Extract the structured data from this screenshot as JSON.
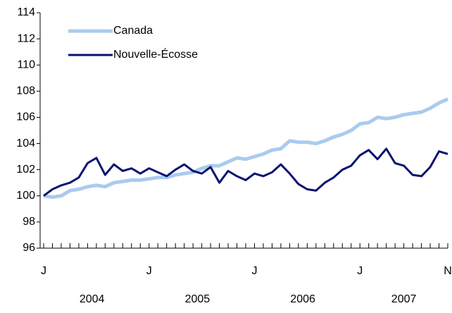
{
  "chart_data": {
    "type": "line",
    "categories": [
      "J",
      null,
      null,
      null,
      null,
      null,
      null,
      null,
      null,
      null,
      null,
      null,
      "J",
      null,
      null,
      null,
      null,
      null,
      null,
      null,
      null,
      null,
      null,
      null,
      "J",
      null,
      null,
      null,
      null,
      null,
      null,
      null,
      null,
      null,
      null,
      null,
      "J",
      null,
      null,
      null,
      null,
      null,
      null,
      null,
      null,
      null,
      "N"
    ],
    "year_labels": [
      "2004",
      "2005",
      "2006",
      "2007"
    ],
    "series": [
      {
        "name": "Canada",
        "color": "#a9cbee",
        "values": [
          100.0,
          99.9,
          100.0,
          100.4,
          100.5,
          100.7,
          100.8,
          100.7,
          101.0,
          101.1,
          101.2,
          101.2,
          101.3,
          101.4,
          101.4,
          101.6,
          101.7,
          101.8,
          102.1,
          102.3,
          102.3,
          102.6,
          102.9,
          102.8,
          103.0,
          103.2,
          103.5,
          103.6,
          104.2,
          104.1,
          104.1,
          104.0,
          104.2,
          104.5,
          104.7,
          105.0,
          105.5,
          105.6,
          106.0,
          105.9,
          106.0,
          106.2,
          106.3,
          106.4,
          106.7,
          107.1,
          107.4
        ]
      },
      {
        "name": "Nouvelle-Écosse",
        "color": "#0b1470",
        "values": [
          100.0,
          100.5,
          100.8,
          101.0,
          101.4,
          102.5,
          102.9,
          101.6,
          102.4,
          101.9,
          102.1,
          101.7,
          102.1,
          101.8,
          101.5,
          102.0,
          102.4,
          101.9,
          101.7,
          102.2,
          101.0,
          101.9,
          101.5,
          101.2,
          101.7,
          101.5,
          101.8,
          102.4,
          101.7,
          100.9,
          100.5,
          100.4,
          101.0,
          101.4,
          102.0,
          102.3,
          103.1,
          103.5,
          102.8,
          103.6,
          102.5,
          102.3,
          101.6,
          101.5,
          102.2,
          103.4,
          103.2
        ]
      }
    ],
    "ylim": [
      96,
      114
    ],
    "yticks": [
      96,
      98,
      100,
      102,
      104,
      106,
      108,
      110,
      112,
      114
    ],
    "legend": "upper-left"
  }
}
